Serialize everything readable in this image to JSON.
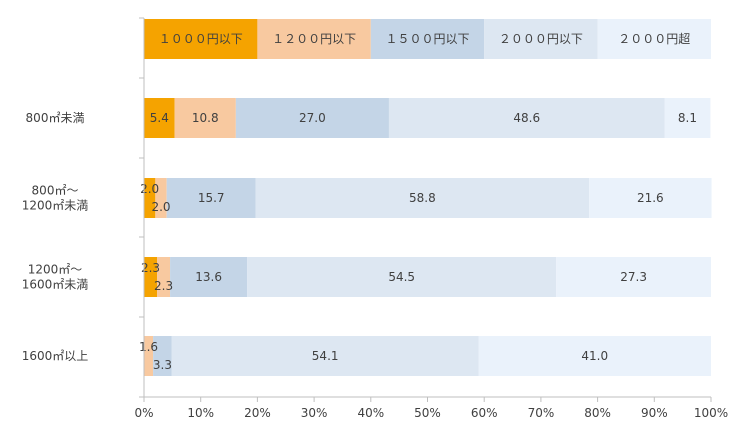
{
  "colors": {
    "series": [
      "#f5a300",
      "#f8c9a0",
      "#c4d5e7",
      "#dde7f2",
      "#eaf2fb"
    ],
    "axis": "#bfbfbf",
    "text": "#404040"
  },
  "chart_data": {
    "type": "bar",
    "orientation": "horizontal",
    "stacked": "percent",
    "legend": {
      "placement": "top",
      "style": "stacked-bar",
      "labels": [
        "１０００円以下",
        "１２００円以下",
        "１５００円以下",
        "２０００円以下",
        "２０００円超"
      ]
    },
    "categories": [
      "800㎡未満",
      "800㎡～\n1200㎡未満",
      "1200㎡～\n1600㎡未満",
      "1600㎡以上"
    ],
    "series": [
      {
        "name": "１０００円以下",
        "values": [
          5.4,
          2.0,
          2.3,
          0
        ]
      },
      {
        "name": "１２００円以下",
        "values": [
          10.8,
          2.0,
          2.3,
          1.6
        ]
      },
      {
        "name": "１５００円以下",
        "values": [
          27.0,
          15.7,
          13.6,
          3.3
        ]
      },
      {
        "name": "２０００円以下",
        "values": [
          48.6,
          58.8,
          54.5,
          54.1
        ]
      },
      {
        "name": "２０００円超",
        "values": [
          8.1,
          21.6,
          27.3,
          41.0
        ]
      }
    ],
    "data_labels": [
      [
        "5.4",
        "10.8",
        "27.0",
        "48.6",
        "8.1"
      ],
      [
        "2.0",
        "2.0",
        "15.7",
        "58.8",
        "21.6"
      ],
      [
        "2.3",
        "2.3",
        "13.6",
        "54.5",
        "27.3"
      ],
      [
        "",
        "1.6",
        "3.3",
        "54.1",
        "41.0"
      ]
    ],
    "xlim": [
      0,
      100
    ],
    "x_ticks": [
      "0%",
      "10%",
      "20%",
      "30%",
      "40%",
      "50%",
      "60%",
      "70%",
      "80%",
      "90%",
      "100%"
    ],
    "grid": false
  }
}
